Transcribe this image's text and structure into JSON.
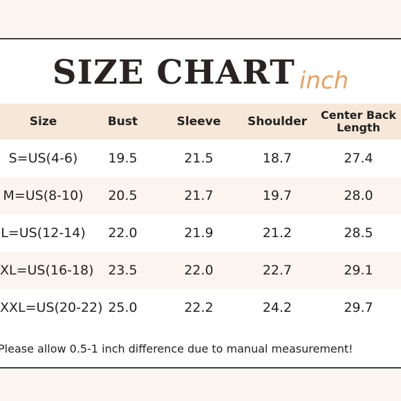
{
  "title": "SIZE CHART",
  "unit": "inch",
  "headers": [
    "Size",
    "Bust",
    "Sleeve",
    "Shoulder",
    "Center Back Length"
  ],
  "rows": [
    {
      "size": "S=US(4-6)",
      "bust": "19.5",
      "sleeve": "21.5",
      "shoulder": "18.7",
      "center_back_length": "27.4"
    },
    {
      "size": "M=US(8-10)",
      "bust": "20.5",
      "sleeve": "21.7",
      "shoulder": "19.7",
      "center_back_length": "28.0"
    },
    {
      "size": "L=US(12-14)",
      "bust": "22.0",
      "sleeve": "21.9",
      "shoulder": "21.2",
      "center_back_length": "28.5"
    },
    {
      "size": "XL=US(16-18)",
      "bust": "23.5",
      "sleeve": "22.0",
      "shoulder": "22.7",
      "center_back_length": "29.1"
    },
    {
      "size": "XXL=US(20-22)",
      "bust": "25.0",
      "sleeve": "22.2",
      "shoulder": "24.2",
      "center_back_length": "29.7"
    }
  ],
  "note": "Please allow 0.5-1 inch difference due to manual measurement!",
  "colors": {
    "page_background": "#fbf6f1",
    "header_row": "#f7e7d8",
    "alt_row": "#fcf5ef",
    "unit_accent": "#e8a062",
    "border": "#3a3a3a"
  }
}
